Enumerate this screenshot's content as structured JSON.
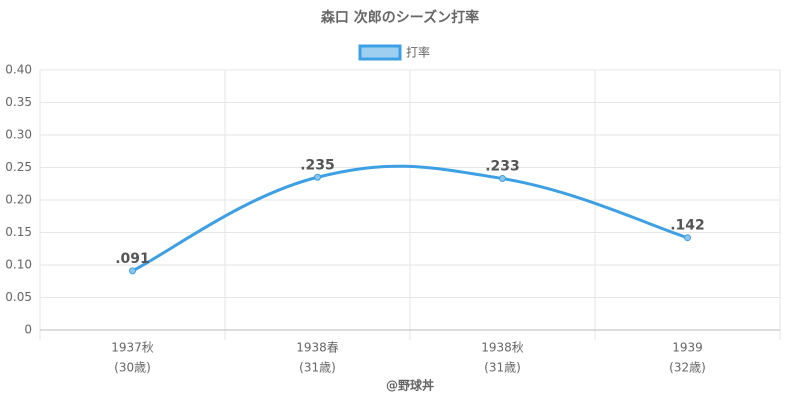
{
  "chart_data": {
    "type": "line",
    "title": "森口 次郎のシーズン打率",
    "x_label": "@野球丼",
    "categories": [
      [
        "1937秋",
        "(30歳)"
      ],
      [
        "1938春",
        "(31歳)"
      ],
      [
        "1938秋",
        "(31歳)"
      ],
      [
        "1939",
        "(32歳)"
      ]
    ],
    "series": [
      {
        "name": "打率",
        "color": "#3ea0e4",
        "values": [
          0.091,
          0.235,
          0.233,
          0.142
        ],
        "value_labels": [
          ".091",
          ".235",
          ".233",
          ".142"
        ]
      }
    ],
    "ylim": [
      0,
      0.4
    ],
    "yticks": [
      0,
      0.05,
      {
        "value": 0.1,
        "label": "0.10"
      },
      0.15,
      {
        "value": 0.2,
        "label": "0.20"
      },
      0.25,
      {
        "value": 0.3,
        "label": "0.30"
      },
      0.35,
      {
        "value": 0.4,
        "label": "0.40"
      }
    ],
    "grid": true,
    "legend": "top"
  }
}
